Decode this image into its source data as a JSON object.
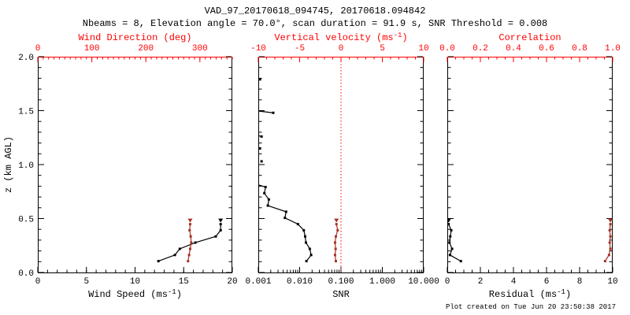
{
  "title": "VAD_97_20170618_094745, 20170618.094842",
  "subtitle": "Nbeams = 8, Elevation angle = 70.0°, scan duration = 91.9 s, SNR Threshold = 0.008",
  "footer": "Plot created on Tue Jun 20 23:50:38 2017",
  "colors": {
    "axis_accent": "#ff0000",
    "series_accent": "#a93226",
    "ink": "#000000"
  },
  "heights_km": [
    0.105,
    0.162,
    0.219,
    0.277,
    0.334,
    0.391,
    0.448
  ],
  "chart_data": [
    {
      "type": "scatter",
      "name": "wind",
      "x_bottom": {
        "title": {
          "pre": "Wind Speed (ms",
          "sup": "-1",
          "post": ")"
        },
        "range": [
          0,
          20
        ],
        "majors": [
          0,
          5,
          10,
          15,
          20
        ],
        "labels": [
          "0",
          "5",
          "10",
          "15",
          "20"
        ],
        "minor_step": 1
      },
      "x_top": {
        "title": {
          "pre": "Wind Direction (deg)"
        },
        "range": [
          0,
          360
        ],
        "majors": [
          0,
          100,
          200,
          300
        ],
        "labels": [
          "0",
          "100",
          "200",
          "300"
        ],
        "minor_step": 10
      },
      "y_left": {
        "title": {
          "pre": "z (km AGL)"
        },
        "range": [
          0,
          2
        ],
        "majors": [
          0,
          0.5,
          1,
          1.5,
          2
        ],
        "labels": [
          "0.0",
          "0.5",
          "1.0",
          "1.5",
          "2.0"
        ],
        "minor_step": 0.1,
        "show_labels": true
      },
      "series": [
        {
          "name": "wind-speed",
          "axis": "bottom",
          "color": "ink",
          "line": true,
          "top_triangle": true,
          "values": [
            12.4,
            14.1,
            14.6,
            16.2,
            18.3,
            18.8,
            18.8
          ],
          "z": "gates"
        },
        {
          "name": "wind-direction",
          "axis": "top",
          "color": "series_accent",
          "line": true,
          "top_triangle": true,
          "values": [
            278,
            280,
            282,
            284,
            283,
            281,
            282
          ],
          "z": "gates"
        }
      ]
    },
    {
      "type": "scatter",
      "name": "snr-velocity",
      "x_bottom": {
        "title": {
          "pre": "SNR"
        },
        "scale": "log",
        "range": [
          0.001,
          10
        ],
        "majors": [
          0.001,
          0.01,
          0.1,
          1,
          10
        ],
        "labels": [
          "0.001",
          "0.010",
          "0.100",
          "1.000",
          "10.000"
        ]
      },
      "x_top": {
        "title": {
          "pre": "Vertical velocity (ms",
          "sup": "-1",
          "post": ")"
        },
        "range": [
          -10,
          10
        ],
        "majors": [
          -10,
          -5,
          0,
          5,
          10
        ],
        "labels": [
          "-10",
          "-5",
          "0",
          "5",
          "10"
        ],
        "minor_step": 1
      },
      "y_left": {
        "range": [
          0,
          2
        ],
        "majors": [
          0,
          0.5,
          1,
          1.5,
          2
        ],
        "minor_step": 0.1,
        "show_labels": false
      },
      "ref_line": {
        "axis": "top",
        "value": 0,
        "style": "dotted",
        "color": "axis_accent"
      },
      "series": [
        {
          "name": "snr",
          "axis": "bottom",
          "color": "ink",
          "points": [
            [
              0.0146,
              0.105
            ],
            [
              0.019,
              0.162
            ],
            [
              0.0176,
              0.219
            ],
            [
              0.0142,
              0.277
            ],
            [
              0.0136,
              0.334
            ],
            [
              0.0126,
              0.391
            ],
            [
              0.0091,
              0.448
            ],
            [
              0.0044,
              0.506
            ],
            [
              0.0047,
              0.563
            ],
            [
              0.0017,
              0.62
            ],
            [
              0.0018,
              0.677
            ],
            [
              0.0014,
              0.735
            ],
            [
              0.0015,
              0.792
            ],
            [
              0.0012,
              1.03
            ],
            [
              0.0011,
              1.15
            ],
            [
              0.0012,
              1.26
            ],
            [
              0.0023,
              1.48
            ],
            [
              0.0011,
              1.79
            ]
          ],
          "lines": [
            [
              [
                0.0146,
                0.105
              ],
              [
                0.019,
                0.162
              ],
              [
                0.0176,
                0.219
              ],
              [
                0.0142,
                0.277
              ],
              [
                0.0136,
                0.334
              ],
              [
                0.0126,
                0.391
              ],
              [
                0.0091,
                0.448
              ],
              [
                0.0044,
                0.506
              ],
              [
                0.0047,
                0.563
              ],
              [
                0.0017,
                0.62
              ],
              [
                0.0018,
                0.677
              ],
              [
                0.0014,
                0.735
              ],
              [
                0.0015,
                0.792
              ],
              [
                0.0004,
                0.86
              ]
            ],
            [
              [
                0.0004,
                1.31
              ],
              [
                0.0012,
                1.26
              ]
            ],
            [
              [
                0.0003,
                1.52
              ],
              [
                0.0023,
                1.48
              ]
            ]
          ]
        },
        {
          "name": "vertical-velocity",
          "axis": "top",
          "color": "series_accent",
          "line": true,
          "top_triangle": true,
          "values": [
            -0.62,
            -0.72,
            -0.65,
            -0.72,
            -0.62,
            -0.4,
            -0.55
          ],
          "z": "gates"
        }
      ]
    },
    {
      "type": "scatter",
      "name": "residual-correlation",
      "x_bottom": {
        "title": {
          "pre": "Residual (ms",
          "sup": "-1",
          "post": ")"
        },
        "range": [
          0,
          10
        ],
        "majors": [
          0,
          2,
          4,
          6,
          8,
          10
        ],
        "labels": [
          "0",
          "2",
          "4",
          "6",
          "8",
          "10"
        ],
        "minor_step": 0.5
      },
      "x_top": {
        "title": {
          "pre": "Correlation"
        },
        "range": [
          0,
          1
        ],
        "majors": [
          0,
          0.2,
          0.4,
          0.6,
          0.8,
          1
        ],
        "labels": [
          "0.0",
          "0.2",
          "0.4",
          "0.6",
          "0.8",
          "1.0"
        ],
        "minor_step": 0.05
      },
      "y_left": {
        "range": [
          0,
          2
        ],
        "majors": [
          0,
          0.5,
          1,
          1.5,
          2
        ],
        "minor_step": 0.1,
        "show_labels": false
      },
      "series": [
        {
          "name": "residual",
          "axis": "bottom",
          "color": "ink",
          "line": true,
          "top_triangle": true,
          "values": [
            0.82,
            0.16,
            0.29,
            0.13,
            0.18,
            0.24,
            0.08
          ],
          "z": "gates"
        },
        {
          "name": "correlation",
          "axis": "top",
          "color": "series_accent",
          "line": true,
          "top_triangle": true,
          "values": [
            0.954,
            0.978,
            0.986,
            0.982,
            0.986,
            0.982,
            0.986
          ],
          "z": "gates"
        }
      ]
    }
  ]
}
